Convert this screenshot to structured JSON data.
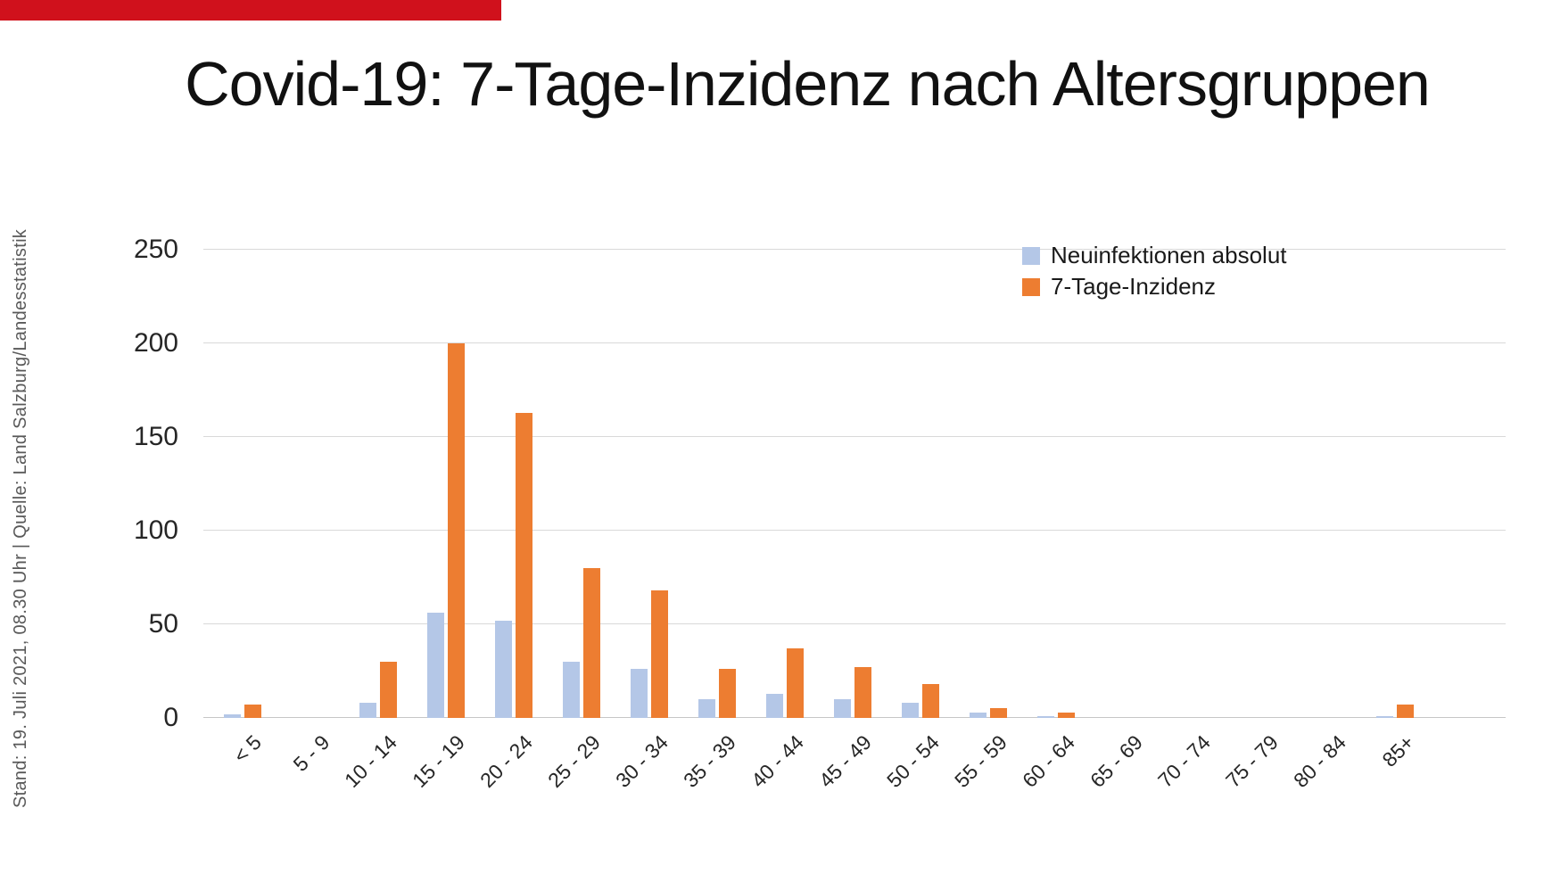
{
  "page": {
    "title": "Covid-19: 7-Tage-Inzidenz nach Altersgruppen",
    "source_note": "Stand: 19. Juli 2021, 08.30 Uhr | Quelle: Land Salzburg/Landesstatistik"
  },
  "colors": {
    "accent_red": "#d0111c",
    "series_blue": "#b4c7e7",
    "series_orange": "#ed7d31",
    "gridline": "#d9d9d9",
    "source_text": "#595959"
  },
  "chart_data": {
    "type": "bar",
    "title": "Covid-19: 7-Tage-Inzidenz nach Altersgruppen",
    "categories": [
      "< 5",
      "5 - 9",
      "10 - 14",
      "15 - 19",
      "20 - 24",
      "25 - 29",
      "30 - 34",
      "35 - 39",
      "40 - 44",
      "45 - 49",
      "50 - 54",
      "55 - 59",
      "60 - 64",
      "65 - 69",
      "70 - 74",
      "75 - 79",
      "80 - 84",
      "85+"
    ],
    "series": [
      {
        "name": "Neuinfektionen absolut",
        "color": "#b4c7e7",
        "values": [
          2,
          0,
          8,
          56,
          52,
          30,
          26,
          10,
          13,
          10,
          8,
          3,
          1,
          0,
          0,
          0,
          0,
          1
        ]
      },
      {
        "name": "7-Tage-Inzidenz",
        "color": "#ed7d31",
        "values": [
          7,
          0,
          30,
          200,
          163,
          80,
          68,
          26,
          37,
          27,
          18,
          5,
          3,
          0,
          0,
          0,
          0,
          7
        ]
      }
    ],
    "xlabel": "",
    "ylabel": "",
    "ylim": [
      0,
      250
    ],
    "yticks": [
      0,
      50,
      100,
      150,
      200,
      250
    ],
    "grid": "horizontal",
    "legend_position": "top-right"
  }
}
